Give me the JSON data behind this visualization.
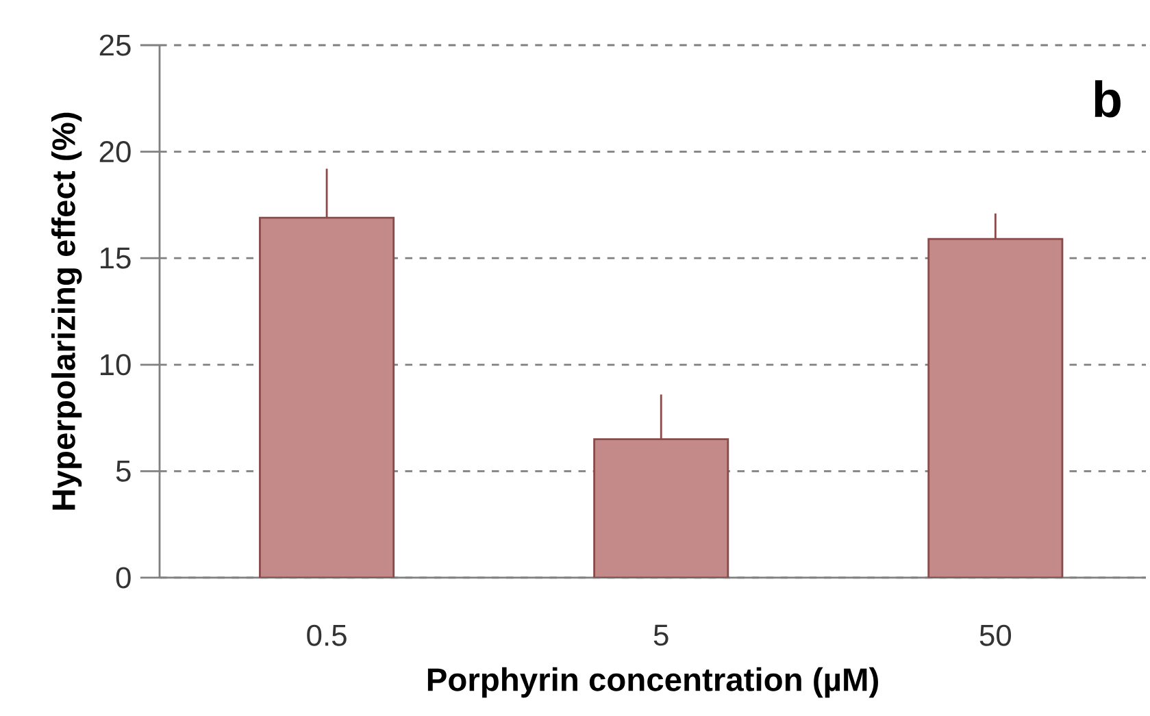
{
  "chart_data": {
    "type": "bar",
    "ylabel": "Hyperpolarizing effect (%)",
    "xlabel": "Porphyrin concentration (µM)",
    "categories": [
      "0.5",
      "5",
      "50"
    ],
    "values": [
      16.9,
      6.5,
      15.9
    ],
    "errors": [
      [
        16.9,
        19.2
      ],
      [
        6.5,
        8.6
      ],
      [
        15.9,
        17.1
      ]
    ],
    "color": "#c48a8a",
    "ylim": [
      0,
      25
    ],
    "yticks": [
      0,
      5,
      10,
      15,
      20,
      25
    ],
    "grid": "y",
    "annotations": [
      "b"
    ]
  }
}
